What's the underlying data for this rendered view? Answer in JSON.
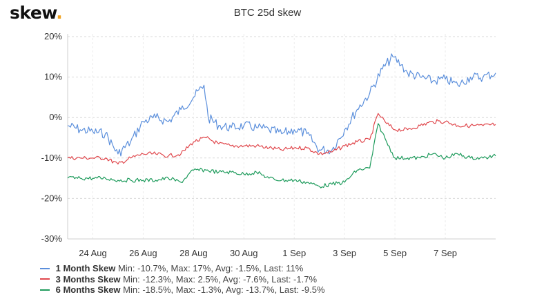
{
  "brand": {
    "name": "skew",
    "dot": "."
  },
  "chart_data": {
    "type": "line",
    "title": "BTC 25d skew",
    "ylim": [
      -30,
      20
    ],
    "yticks": [
      "20%",
      "10%",
      "0%",
      "-10%",
      "-20%",
      "-30%"
    ],
    "ytick_values": [
      20,
      10,
      0,
      -10,
      -20,
      -30
    ],
    "xlim": [
      "2020-08-23",
      "2020-09-09"
    ],
    "xticks": [
      "24 Aug",
      "26 Aug",
      "28 Aug",
      "30 Aug",
      "1 Sep",
      "3 Sep",
      "5 Sep",
      "7 Sep"
    ],
    "xtick_values": [
      "2020-08-24",
      "2020-08-26",
      "2020-08-28",
      "2020-08-30",
      "2020-09-01",
      "2020-09-03",
      "2020-09-05",
      "2020-09-07"
    ],
    "grid": true,
    "legend_position": "bottom-left",
    "series": [
      {
        "name": "1 Month Skew",
        "stats": "Min: -10.7%, Max: 17%, Avg: -1.5%, Last: 11%",
        "color": "#5b8fdc",
        "points": [
          [
            "2020-08-23T00:00",
            -2
          ],
          [
            "2020-08-23T12:00",
            -3
          ],
          [
            "2020-08-24T00:00",
            -3.5
          ],
          [
            "2020-08-24T12:00",
            -4
          ],
          [
            "2020-08-25T00:00",
            -9
          ],
          [
            "2020-08-25T12:00",
            -6
          ],
          [
            "2020-08-26T00:00",
            -1
          ],
          [
            "2020-08-26T12:00",
            0
          ],
          [
            "2020-08-27T00:00",
            -1
          ],
          [
            "2020-08-27T12:00",
            2
          ],
          [
            "2020-08-28T00:00",
            5
          ],
          [
            "2020-08-28T10:00",
            8
          ],
          [
            "2020-08-28T14:00",
            0
          ],
          [
            "2020-08-29T00:00",
            -2
          ],
          [
            "2020-08-29T12:00",
            -2.5
          ],
          [
            "2020-08-30T00:00",
            -2
          ],
          [
            "2020-08-30T12:00",
            -2.5
          ],
          [
            "2020-08-31T00:00",
            -3
          ],
          [
            "2020-08-31T12:00",
            -4
          ],
          [
            "2020-09-01T00:00",
            -3
          ],
          [
            "2020-09-01T12:00",
            -4
          ],
          [
            "2020-09-02T00:00",
            -8
          ],
          [
            "2020-09-02T12:00",
            -8
          ],
          [
            "2020-09-03T00:00",
            -3
          ],
          [
            "2020-09-03T12:00",
            2
          ],
          [
            "2020-09-04T00:00",
            6
          ],
          [
            "2020-09-04T12:00",
            12
          ],
          [
            "2020-09-04T22:00",
            15
          ],
          [
            "2020-09-05T06:00",
            13
          ],
          [
            "2020-09-05T12:00",
            11
          ],
          [
            "2020-09-06T00:00",
            10
          ],
          [
            "2020-09-06T12:00",
            9
          ],
          [
            "2020-09-07T00:00",
            9.5
          ],
          [
            "2020-09-07T12:00",
            8
          ],
          [
            "2020-09-08T00:00",
            10
          ],
          [
            "2020-09-08T12:00",
            10
          ],
          [
            "2020-09-09T00:00",
            11
          ]
        ]
      },
      {
        "name": "3 Months Skew",
        "stats": "Min: -12.3%, Max: 2.5%, Avg: -7.6%, Last: -1.7%",
        "color": "#e0474c",
        "points": [
          [
            "2020-08-23T00:00",
            -10
          ],
          [
            "2020-08-23T12:00",
            -10
          ],
          [
            "2020-08-24T00:00",
            -10
          ],
          [
            "2020-08-24T12:00",
            -10
          ],
          [
            "2020-08-25T00:00",
            -11.5
          ],
          [
            "2020-08-25T12:00",
            -10
          ],
          [
            "2020-08-26T00:00",
            -9
          ],
          [
            "2020-08-26T12:00",
            -9
          ],
          [
            "2020-08-27T00:00",
            -9.5
          ],
          [
            "2020-08-27T12:00",
            -9
          ],
          [
            "2020-08-28T00:00",
            -6
          ],
          [
            "2020-08-28T12:00",
            -5
          ],
          [
            "2020-08-29T00:00",
            -6.5
          ],
          [
            "2020-08-29T12:00",
            -7
          ],
          [
            "2020-08-30T00:00",
            -7
          ],
          [
            "2020-08-30T12:00",
            -7
          ],
          [
            "2020-08-31T00:00",
            -7.5
          ],
          [
            "2020-08-31T12:00",
            -8
          ],
          [
            "2020-09-01T00:00",
            -7.5
          ],
          [
            "2020-09-01T12:00",
            -7.5
          ],
          [
            "2020-09-02T00:00",
            -9
          ],
          [
            "2020-09-02T12:00",
            -8.5
          ],
          [
            "2020-09-03T00:00",
            -7
          ],
          [
            "2020-09-03T12:00",
            -6
          ],
          [
            "2020-09-04T00:00",
            -5.5
          ],
          [
            "2020-09-04T08:00",
            1
          ],
          [
            "2020-09-04T16:00",
            -1.5
          ],
          [
            "2020-09-05T00:00",
            -3
          ],
          [
            "2020-09-05T12:00",
            -3
          ],
          [
            "2020-09-06T00:00",
            -2
          ],
          [
            "2020-09-06T12:00",
            -1
          ],
          [
            "2020-09-07T00:00",
            -1
          ],
          [
            "2020-09-07T12:00",
            -2
          ],
          [
            "2020-09-08T00:00",
            -2
          ],
          [
            "2020-09-08T12:00",
            -2
          ],
          [
            "2020-09-09T00:00",
            -1.7
          ]
        ]
      },
      {
        "name": "6 Months Skew",
        "stats": "Min: -18.5%, Max: -1.3%, Avg: -13.7%, Last: -9.5%",
        "color": "#1e9b5c",
        "points": [
          [
            "2020-08-23T00:00",
            -15
          ],
          [
            "2020-08-23T12:00",
            -15
          ],
          [
            "2020-08-24T00:00",
            -15
          ],
          [
            "2020-08-24T12:00",
            -15
          ],
          [
            "2020-08-25T00:00",
            -15.5
          ],
          [
            "2020-08-25T12:00",
            -15.5
          ],
          [
            "2020-08-26T00:00",
            -15.5
          ],
          [
            "2020-08-26T12:00",
            -15.5
          ],
          [
            "2020-08-27T00:00",
            -15
          ],
          [
            "2020-08-27T12:00",
            -16
          ],
          [
            "2020-08-28T00:00",
            -13
          ],
          [
            "2020-08-28T12:00",
            -13
          ],
          [
            "2020-08-29T00:00",
            -13.5
          ],
          [
            "2020-08-29T12:00",
            -13.5
          ],
          [
            "2020-08-30T00:00",
            -14
          ],
          [
            "2020-08-30T12:00",
            -13.5
          ],
          [
            "2020-08-31T00:00",
            -15
          ],
          [
            "2020-08-31T12:00",
            -15.5
          ],
          [
            "2020-09-01T00:00",
            -15.5
          ],
          [
            "2020-09-01T12:00",
            -16
          ],
          [
            "2020-09-02T00:00",
            -17
          ],
          [
            "2020-09-02T12:00",
            -16.5
          ],
          [
            "2020-09-03T00:00",
            -16
          ],
          [
            "2020-09-03T12:00",
            -13
          ],
          [
            "2020-09-04T00:00",
            -12.5
          ],
          [
            "2020-09-04T08:00",
            -1.5
          ],
          [
            "2020-09-04T16:00",
            -6
          ],
          [
            "2020-09-05T00:00",
            -10
          ],
          [
            "2020-09-05T12:00",
            -10
          ],
          [
            "2020-09-06T00:00",
            -10
          ],
          [
            "2020-09-06T12:00",
            -9
          ],
          [
            "2020-09-07T00:00",
            -10
          ],
          [
            "2020-09-07T12:00",
            -9
          ],
          [
            "2020-09-08T00:00",
            -10
          ],
          [
            "2020-09-08T12:00",
            -10
          ],
          [
            "2020-09-09T00:00",
            -9.5
          ]
        ]
      }
    ]
  }
}
